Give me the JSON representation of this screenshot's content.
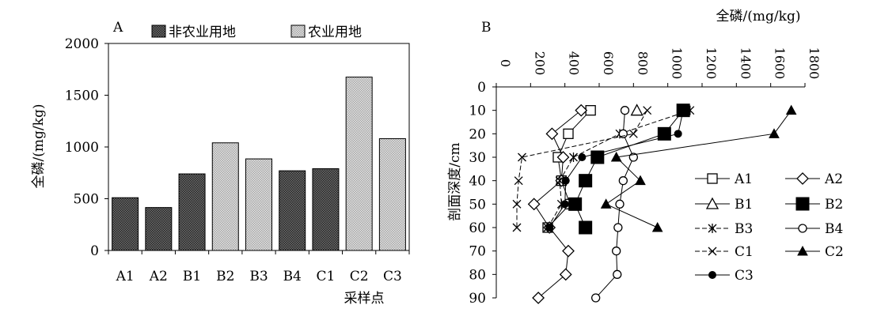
{
  "chart_data": [
    {
      "type": "bar",
      "panel_label": "A",
      "categories": [
        "A1",
        "A2",
        "B1",
        "B2",
        "B3",
        "B4",
        "C1",
        "C2",
        "C3"
      ],
      "values": [
        510,
        415,
        740,
        1040,
        885,
        770,
        790,
        1675,
        1080
      ],
      "bar_groups": [
        "non-agri",
        "non-agri",
        "non-agri",
        "agri",
        "agri",
        "non-agri",
        "non-agri",
        "agri",
        "agri"
      ],
      "legend": [
        {
          "key": "non-agri",
          "label": "非农业用地"
        },
        {
          "key": "agri",
          "label": "农业用地"
        }
      ],
      "legend_position": "top",
      "xlabel": "采样点",
      "ylabel": "全磷/(mg/kg)",
      "ylim": [
        0,
        2000
      ],
      "yticks": [
        0,
        500,
        1000,
        1500,
        2000
      ],
      "grid": false
    },
    {
      "type": "line",
      "panel_label": "B",
      "xlabel": "全磷/(mg/kg)",
      "ylabel": "剖面深度/cm",
      "xlim": [
        0,
        1800
      ],
      "ylim": [
        0,
        90
      ],
      "y_inverted": true,
      "x_axis_position": "top",
      "xticks": [
        0,
        200,
        400,
        600,
        800,
        1000,
        1200,
        1400,
        1600,
        1800
      ],
      "yticks": [
        0,
        10,
        20,
        30,
        40,
        50,
        60,
        70,
        80,
        90
      ],
      "legend_position": "right",
      "series": [
        {
          "name": "A1",
          "marker": "square-open",
          "dash": "solid",
          "x": [
            550,
            420,
            360,
            380,
            430,
            300
          ],
          "y": [
            10,
            20,
            30,
            40,
            50,
            60
          ]
        },
        {
          "name": "A2",
          "marker": "diamond-open",
          "dash": "solid",
          "x": [
            495,
            325,
            390,
            380,
            220,
            310,
            420,
            405,
            245
          ],
          "y": [
            10,
            20,
            30,
            40,
            50,
            60,
            70,
            80,
            90
          ]
        },
        {
          "name": "B1",
          "marker": "triangle-open",
          "dash": "solid",
          "x": [
            820
          ],
          "y": [
            10
          ]
        },
        {
          "name": "B2",
          "marker": "square-filled",
          "dash": "solid",
          "x": [
            1090,
            980,
            590,
            520,
            460,
            520
          ],
          "y": [
            10,
            20,
            30,
            40,
            50,
            60
          ]
        },
        {
          "name": "B3",
          "marker": "asterisk",
          "dash": "dashed",
          "x": [
            1130,
            720,
            450,
            370,
            380,
            300
          ],
          "y": [
            10,
            20,
            30,
            40,
            50,
            60
          ]
        },
        {
          "name": "B4",
          "marker": "circle-open",
          "dash": "solid",
          "x": [
            750,
            740,
            800,
            740,
            720,
            710,
            700,
            705,
            580
          ],
          "y": [
            10,
            20,
            30,
            40,
            50,
            60,
            70,
            80,
            90
          ]
        },
        {
          "name": "C1",
          "marker": "x",
          "dash": "dashed",
          "x": [
            880,
            800,
            150,
            130,
            120,
            120
          ],
          "y": [
            10,
            20,
            30,
            40,
            50,
            60
          ]
        },
        {
          "name": "C2",
          "marker": "triangle-filled",
          "dash": "solid",
          "x": [
            1720,
            1620,
            700,
            840,
            640,
            940
          ],
          "y": [
            10,
            20,
            30,
            40,
            50,
            60
          ]
        },
        {
          "name": "C3",
          "marker": "circle-filled",
          "dash": "solid",
          "x": [
            1090,
            1060,
            500,
            405,
            400,
            310
          ],
          "y": [
            10,
            20,
            30,
            40,
            50,
            60
          ]
        }
      ]
    }
  ]
}
